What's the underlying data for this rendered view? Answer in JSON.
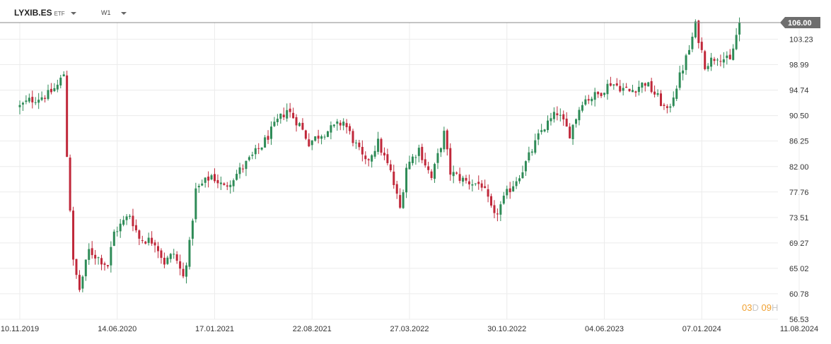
{
  "header": {
    "symbol": "LYXIB.ES",
    "instrument_type": "ETF",
    "timeframe": "W1"
  },
  "countdown": {
    "d_value": "03",
    "d_unit": "D",
    "h_value": "09",
    "h_unit": "H"
  },
  "colors": {
    "up": "#2e8b57",
    "down": "#c0283a",
    "grid": "#ececec",
    "axis_text": "#333333",
    "price_tag_bg": "#6e6e6e",
    "countdown": "#f0a030"
  },
  "chart_data": {
    "type": "candlestick",
    "y_axis_ticks": [
      "106.00",
      "103.23",
      "98.99",
      "94.74",
      "90.50",
      "86.25",
      "82.00",
      "77.76",
      "73.51",
      "69.27",
      "65.02",
      "60.78",
      "56.53"
    ],
    "ylim": [
      56.53,
      106.0
    ],
    "x_axis_ticks": [
      "10.11.2019",
      "14.06.2020",
      "17.01.2021",
      "22.08.2021",
      "27.03.2022",
      "30.10.2022",
      "04.06.2023",
      "07.01.2024",
      "11.08.2024"
    ],
    "x_range": [
      "2019-11-10",
      "2024-08-11"
    ],
    "last_price": "106.00",
    "close_path": [
      [
        "2019-11-10",
        92.0
      ],
      [
        "2019-12-01",
        93.0
      ],
      [
        "2020-01-12",
        94.0
      ],
      [
        "2020-02-02",
        95.5
      ],
      [
        "2020-02-16",
        97.5
      ],
      [
        "2020-02-23",
        84.0
      ],
      [
        "2020-03-08",
        66.0
      ],
      [
        "2020-03-22",
        61.5
      ],
      [
        "2020-04-12",
        68.0
      ],
      [
        "2020-05-24",
        65.5
      ],
      [
        "2020-06-07",
        71.0
      ],
      [
        "2020-07-12",
        74.0
      ],
      [
        "2020-08-02",
        70.0
      ],
      [
        "2020-09-06",
        69.5
      ],
      [
        "2020-09-27",
        66.0
      ],
      [
        "2020-10-18",
        67.5
      ],
      [
        "2020-11-08",
        63.5
      ],
      [
        "2020-11-22",
        69.0
      ],
      [
        "2020-12-06",
        78.0
      ],
      [
        "2021-01-10",
        80.5
      ],
      [
        "2021-02-07",
        78.5
      ],
      [
        "2021-03-28",
        82.5
      ],
      [
        "2021-05-02",
        85.5
      ],
      [
        "2021-06-06",
        89.5
      ],
      [
        "2021-06-27",
        91.5
      ],
      [
        "2021-07-25",
        89.0
      ],
      [
        "2021-08-15",
        86.0
      ],
      [
        "2021-09-12",
        87.5
      ],
      [
        "2021-10-10",
        88.5
      ],
      [
        "2021-10-31",
        89.5
      ],
      [
        "2021-11-28",
        85.5
      ],
      [
        "2021-12-19",
        82.5
      ],
      [
        "2022-01-16",
        86.0
      ],
      [
        "2022-02-13",
        81.0
      ],
      [
        "2022-03-06",
        75.0
      ],
      [
        "2022-03-20",
        82.0
      ],
      [
        "2022-04-17",
        85.0
      ],
      [
        "2022-05-15",
        80.0
      ],
      [
        "2022-06-12",
        87.5
      ],
      [
        "2022-06-26",
        81.0
      ],
      [
        "2022-07-31",
        79.5
      ],
      [
        "2022-09-04",
        79.0
      ],
      [
        "2022-10-02",
        73.5
      ],
      [
        "2022-10-30",
        77.5
      ],
      [
        "2022-12-04",
        81.5
      ],
      [
        "2023-01-15",
        88.0
      ],
      [
        "2023-02-19",
        91.0
      ],
      [
        "2023-03-19",
        87.5
      ],
      [
        "2023-04-16",
        93.0
      ],
      [
        "2023-05-21",
        94.0
      ],
      [
        "2023-06-18",
        96.0
      ],
      [
        "2023-07-30",
        94.5
      ],
      [
        "2023-09-03",
        96.0
      ],
      [
        "2023-10-01",
        93.5
      ],
      [
        "2023-10-22",
        91.0
      ],
      [
        "2023-11-19",
        97.0
      ],
      [
        "2023-12-10",
        101.5
      ],
      [
        "2023-12-24",
        105.5
      ],
      [
        "2024-01-14",
        99.0
      ],
      [
        "2024-02-11",
        100.5
      ],
      [
        "2024-03-10",
        99.5
      ],
      [
        "2024-03-31",
        106.0
      ]
    ]
  }
}
